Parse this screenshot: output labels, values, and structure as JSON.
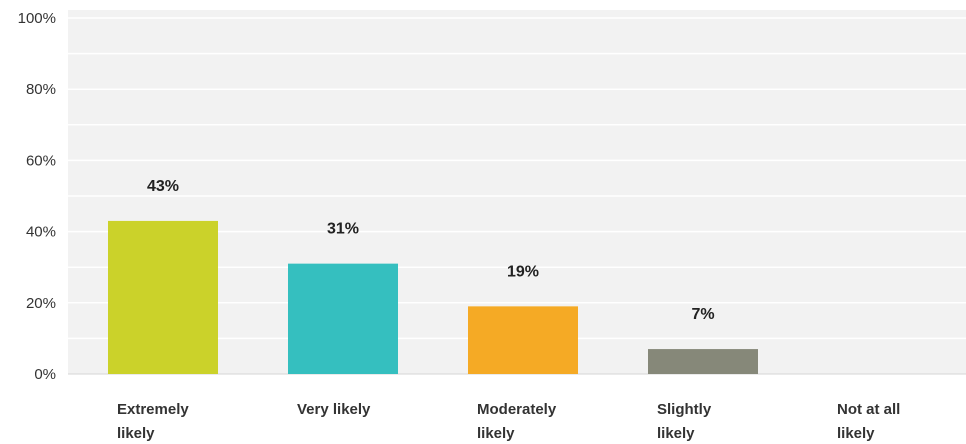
{
  "chart_data": {
    "type": "bar",
    "title": "",
    "xlabel": "",
    "ylabel": "",
    "ylim": [
      0,
      100
    ],
    "y_ticks": [
      0,
      20,
      40,
      60,
      80,
      100
    ],
    "y_tick_labels": [
      "0%",
      "20%",
      "40%",
      "60%",
      "80%",
      "100%"
    ],
    "grid": true,
    "legend": "none",
    "categories": [
      [
        "Extremely",
        "likely"
      ],
      [
        "Very likely"
      ],
      [
        "Moderately",
        "likely"
      ],
      [
        "Slightly",
        "likely"
      ],
      [
        "Not at all",
        "likely"
      ]
    ],
    "values": [
      43,
      31,
      19,
      7,
      0
    ],
    "data_labels": [
      "43%",
      "31%",
      "19%",
      "7%",
      ""
    ],
    "colors": [
      "#cbd22a",
      "#35bfbf",
      "#f5aa25",
      "#868879",
      "#cccccc"
    ]
  }
}
